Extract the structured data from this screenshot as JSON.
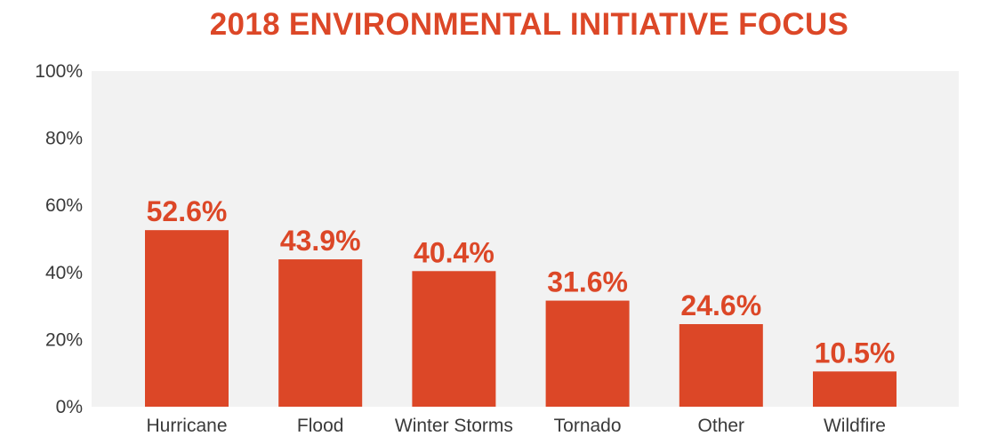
{
  "chart_data": {
    "type": "bar",
    "title": "2018 ENVIRONMENTAL INITIATIVE FOCUS",
    "xlabel": "",
    "ylabel": "",
    "categories": [
      "Hurricane",
      "Flood",
      "Winter Storms",
      "Tornado",
      "Other",
      "Wildfire"
    ],
    "values": [
      52.6,
      43.9,
      40.4,
      31.6,
      24.6,
      10.5
    ],
    "data_labels": [
      "52.6%",
      "43.9%",
      "40.4%",
      "31.6%",
      "24.6%",
      "10.5%"
    ],
    "ylim": [
      0,
      100
    ],
    "yticks": [
      0,
      20,
      40,
      60,
      80,
      100
    ],
    "ytick_labels": [
      "0%",
      "20%",
      "40%",
      "60%",
      "80%",
      "100%"
    ],
    "grid": false,
    "legend": "none",
    "colors": {
      "bar": "#dc4727",
      "label": "#dc4727",
      "plot_background": "#f2f2f2",
      "text": "#3a3a3a"
    }
  }
}
